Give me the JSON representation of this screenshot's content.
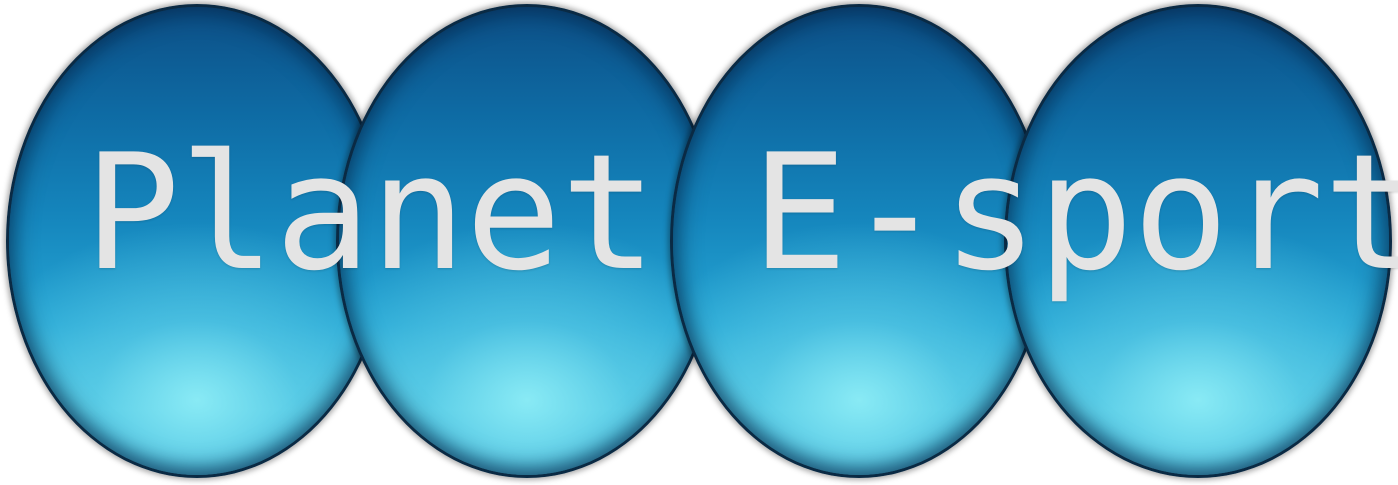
{
  "logo": {
    "text": "Planet E-sports",
    "orb_count": 4,
    "colors": {
      "text": "#e4e4e4",
      "orb_top": "#0c4f86",
      "orb_bottom_glow": "#8cecf6",
      "orb_outline": "#0a2a44",
      "background": "#ffffff"
    }
  }
}
